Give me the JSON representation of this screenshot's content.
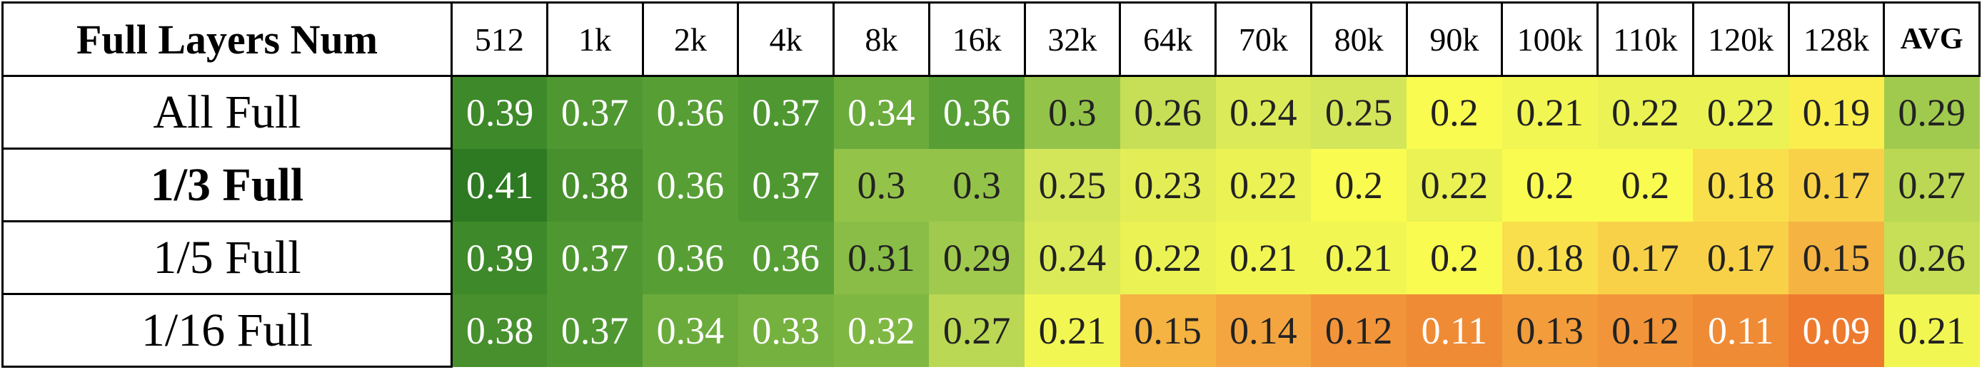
{
  "header": {
    "corner": "Full Layers Num",
    "columns": [
      "512",
      "1k",
      "2k",
      "4k",
      "8k",
      "16k",
      "32k",
      "64k",
      "70k",
      "80k",
      "90k",
      "100k",
      "110k",
      "120k",
      "128k",
      "AVG"
    ]
  },
  "rows": [
    {
      "label": "All Full",
      "values": [
        0.39,
        0.37,
        0.36,
        0.37,
        0.34,
        0.36,
        0.3,
        0.26,
        0.24,
        0.25,
        0.2,
        0.21,
        0.22,
        0.22,
        0.19,
        0.29
      ]
    },
    {
      "label": "1/3 Full",
      "values": [
        0.41,
        0.38,
        0.36,
        0.37,
        0.3,
        0.3,
        0.25,
        0.23,
        0.22,
        0.2,
        0.22,
        0.2,
        0.2,
        0.18,
        0.17,
        0.27
      ]
    },
    {
      "label": "1/5 Full",
      "values": [
        0.39,
        0.37,
        0.36,
        0.36,
        0.31,
        0.29,
        0.24,
        0.22,
        0.21,
        0.21,
        0.2,
        0.18,
        0.17,
        0.17,
        0.15,
        0.26
      ]
    },
    {
      "label": "1/16 Full",
      "values": [
        0.38,
        0.37,
        0.34,
        0.33,
        0.32,
        0.27,
        0.21,
        0.15,
        0.14,
        0.12,
        0.11,
        0.13,
        0.12,
        0.11,
        0.09,
        0.21
      ]
    }
  ]
}
